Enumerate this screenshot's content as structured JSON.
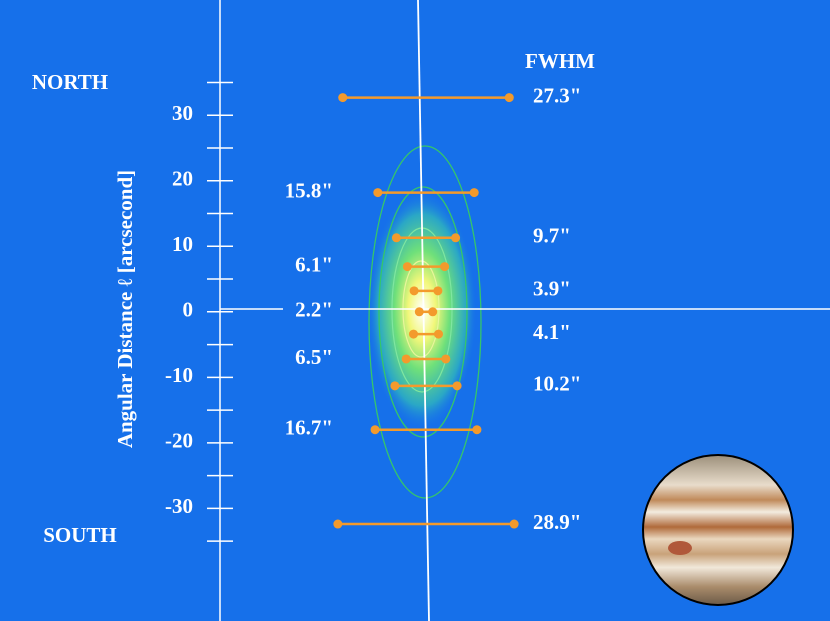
{
  "chart_data": {
    "type": "fwhm-profile",
    "north_label": "NORTH",
    "south_label": "SOUTH",
    "fwhm_heading": "FWHM",
    "ylabel": "Angular Distance ℓ  [arcsecond]",
    "ylim": [
      -47.2,
      47.6
    ],
    "yticks": [
      30,
      20,
      10,
      0,
      -10,
      -20,
      -30
    ],
    "series": [
      {
        "name": "FWHM",
        "color": "#f39a2c",
        "distances": [
          32.7,
          18.2,
          11.3,
          6.9,
          3.2,
          0,
          -3.4,
          -7.2,
          -11.3,
          -18.0,
          -32.4
        ],
        "values": [
          27.3,
          15.8,
          9.7,
          6.1,
          3.9,
          2.2,
          4.1,
          6.5,
          10.2,
          16.7,
          28.9
        ],
        "value_labels": [
          "27.3\"",
          "15.8\"",
          "9.7\"",
          "6.1\"",
          "3.9\"",
          "2.2\"",
          "4.1\"",
          "6.5\"",
          "10.2\"",
          "16.7\"",
          "28.9\""
        ]
      }
    ]
  }
}
